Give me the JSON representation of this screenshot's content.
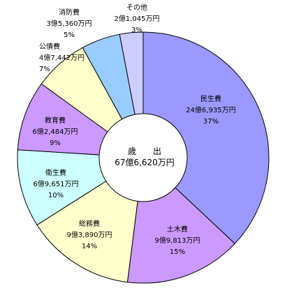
{
  "chart_data": {
    "type": "pie",
    "center_title": "歳　　出",
    "center_total": "67億6,620万円",
    "slices": [
      {
        "name": "民生費",
        "amount": "24億6,935万円",
        "percent_label": "37%",
        "value": 37,
        "color": "#9999ff"
      },
      {
        "name": "土木費",
        "amount": "9億9,813万円",
        "percent_label": "15%",
        "value": 15,
        "color": "#cc99ff"
      },
      {
        "name": "総務費",
        "amount": "9億3,890万円",
        "percent_label": "14%",
        "value": 14,
        "color": "#ffffcc"
      },
      {
        "name": "衛生費",
        "amount": "6億9,651万円",
        "percent_label": "10%",
        "value": 10,
        "color": "#ccffff"
      },
      {
        "name": "教育費",
        "amount": "6億2,484万円",
        "percent_label": "9%",
        "value": 9,
        "color": "#cc99ff"
      },
      {
        "name": "公債費",
        "amount": "4億7,442万円",
        "percent_label": "7%",
        "value": 7,
        "color": "#ffffcc"
      },
      {
        "name": "消防費",
        "amount": "3億5,360万円",
        "percent_label": "5%",
        "value": 5,
        "color": "#99ccff"
      },
      {
        "name": "その他",
        "amount": "2億1,045万円",
        "percent_label": "3%",
        "value": 3,
        "color": "#ccccff"
      }
    ]
  }
}
